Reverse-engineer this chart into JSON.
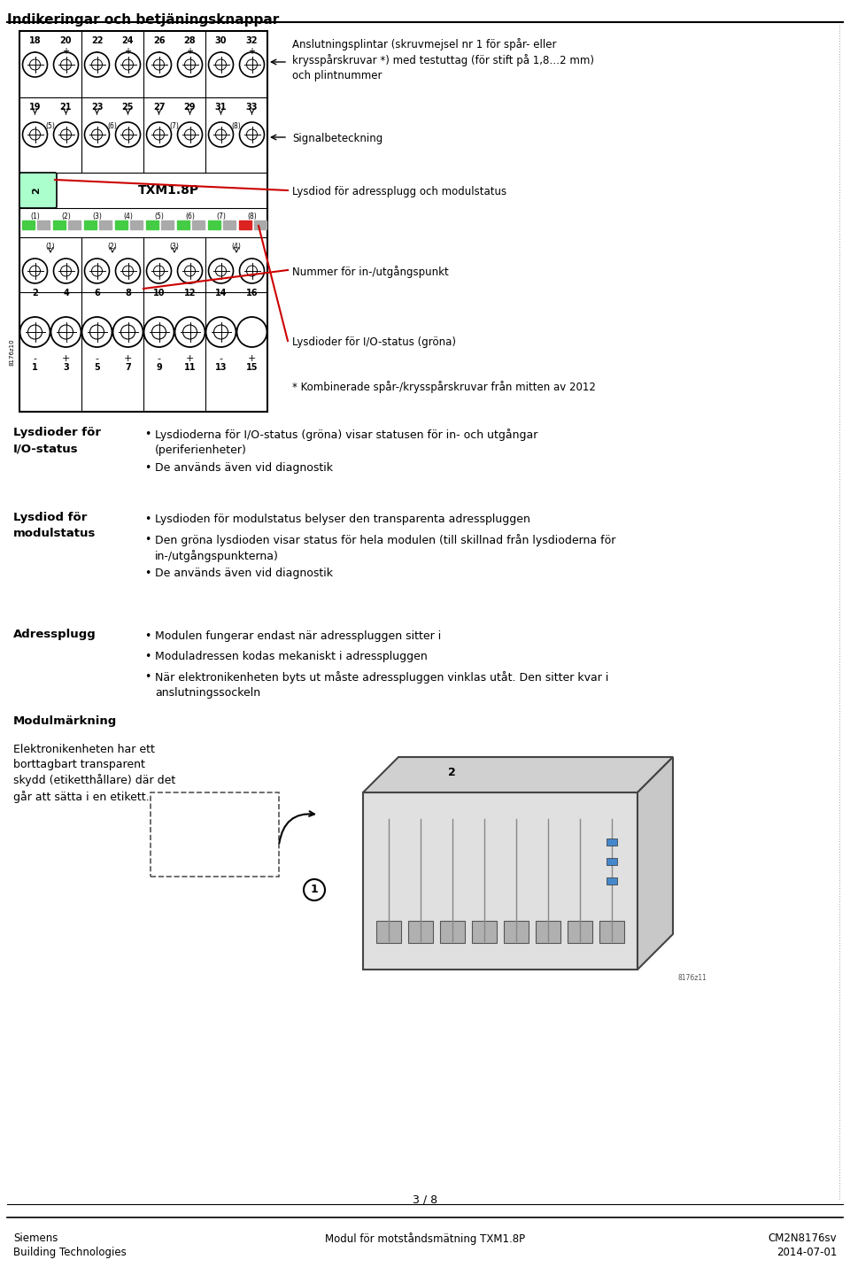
{
  "title": "Indikeringar och betjäningsknappar",
  "background_color": "#ffffff",
  "page_num": "3 / 8",
  "footer_left1": "Siemens",
  "footer_left2": "Building Technologies",
  "footer_center": "Modul för motståndsmätning TXM1.8P",
  "footer_right1": "CM2N8176sv",
  "footer_right2": "2014-07-01",
  "section1_heading": "Lysdioder för\nI/O-status",
  "section1_bullets": [
    "Lysdioderna för I/O-status (gröna) visar statusen för in- och utgångar\n(periferienheter)",
    "De används även vid diagnostik"
  ],
  "section2_heading": "Lysdiod för\nmodulstatus",
  "section2_bullets": [
    "Lysdioden för modulstatus belyser den transparenta adresspluggen",
    "Den gröna lysdioden visar status för hela modulen (till skillnad från lysdioderna för\nin-/utgångspunkterna)",
    "De används även vid diagnostik"
  ],
  "section3_heading": "Adressplugg",
  "section3_bullets": [
    "Modulen fungerar endast när adresspluggen sitter i",
    "Moduladressen kodas mekaniskt i adresspluggen",
    "När elektronikenheten byts ut måste adresspluggen vinklas utåt. Den sitter kvar i\nanslutningssockeln"
  ],
  "section4_heading": "Modulmärkning",
  "section4_text": "Elektronikenheten har ett\nborttagbart transparent\nskydd (etiketthållare) där det\ngår att sätta i en etikett.",
  "green_color": "#44cc44",
  "gray_color": "#aaaaaa",
  "light_green": "#aaffcc",
  "red_color": "#cc0000"
}
